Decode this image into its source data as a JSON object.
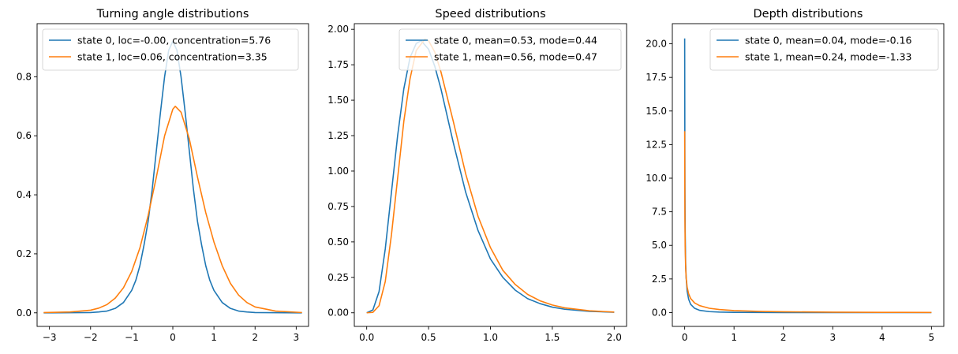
{
  "colors": {
    "series0": "#1f77b4",
    "series1": "#ff7f0e"
  },
  "chart_data": [
    {
      "type": "line",
      "title": "Turning angle distributions",
      "xlabel": "",
      "ylabel": "",
      "xlim": [
        -3.3,
        3.3
      ],
      "ylim": [
        -0.046,
        0.98
      ],
      "xticks": [
        -3,
        -2,
        -1,
        0,
        1,
        2,
        3
      ],
      "xticklabels": [
        "−3",
        "−2",
        "−1",
        "0",
        "1",
        "2",
        "3"
      ],
      "yticks": [
        0.0,
        0.2,
        0.4,
        0.6,
        0.8
      ],
      "yticklabels": [
        "0.0",
        "0.2",
        "0.4",
        "0.6",
        "0.8"
      ],
      "grid": false,
      "legend": "upper-left",
      "series": [
        {
          "name": "state 0, loc=-0.00, concentration=5.76",
          "x": [
            -3.14,
            -2.0,
            -1.8,
            -1.6,
            -1.4,
            -1.2,
            -1.0,
            -0.9,
            -0.8,
            -0.7,
            -0.6,
            -0.5,
            -0.4,
            -0.3,
            -0.2,
            -0.1,
            0.0,
            0.1,
            0.2,
            0.3,
            0.4,
            0.5,
            0.6,
            0.7,
            0.8,
            0.9,
            1.0,
            1.2,
            1.4,
            1.6,
            1.8,
            2.0,
            3.14
          ],
          "y": [
            0.0,
            0.001,
            0.003,
            0.006,
            0.015,
            0.035,
            0.076,
            0.11,
            0.16,
            0.23,
            0.31,
            0.42,
            0.55,
            0.68,
            0.8,
            0.89,
            0.92,
            0.89,
            0.8,
            0.68,
            0.55,
            0.42,
            0.31,
            0.23,
            0.16,
            0.11,
            0.076,
            0.035,
            0.015,
            0.006,
            0.003,
            0.001,
            0.0
          ]
        },
        {
          "name": "state 1, loc=0.06, concentration=3.35",
          "x": [
            -3.14,
            -2.5,
            -2.0,
            -1.8,
            -1.6,
            -1.4,
            -1.2,
            -1.0,
            -0.8,
            -0.6,
            -0.4,
            -0.2,
            0.0,
            0.06,
            0.2,
            0.4,
            0.6,
            0.8,
            1.0,
            1.2,
            1.4,
            1.6,
            1.8,
            2.0,
            2.5,
            3.14
          ],
          "y": [
            0.001,
            0.003,
            0.009,
            0.016,
            0.028,
            0.05,
            0.085,
            0.14,
            0.22,
            0.33,
            0.46,
            0.6,
            0.69,
            0.7,
            0.68,
            0.59,
            0.46,
            0.34,
            0.24,
            0.16,
            0.1,
            0.06,
            0.035,
            0.02,
            0.006,
            0.001
          ]
        }
      ]
    },
    {
      "type": "line",
      "title": "Speed distributions",
      "xlabel": "",
      "ylabel": "",
      "xlim": [
        -0.1,
        2.1
      ],
      "ylim": [
        -0.096,
        2.04
      ],
      "xticks": [
        0.0,
        0.5,
        1.0,
        1.5,
        2.0
      ],
      "xticklabels": [
        "0.0",
        "0.5",
        "1.0",
        "1.5",
        "2.0"
      ],
      "yticks": [
        0.0,
        0.25,
        0.5,
        0.75,
        1.0,
        1.25,
        1.5,
        1.75,
        2.0
      ],
      "yticklabels": [
        "0.00",
        "0.25",
        "0.50",
        "0.75",
        "1.00",
        "1.25",
        "1.50",
        "1.75",
        "2.00"
      ],
      "grid": false,
      "legend": "upper-right",
      "series": [
        {
          "name": "state 0, mean=0.53, mode=0.44",
          "x": [
            0.0,
            0.05,
            0.1,
            0.15,
            0.2,
            0.25,
            0.3,
            0.35,
            0.4,
            0.44,
            0.5,
            0.55,
            0.6,
            0.7,
            0.8,
            0.9,
            1.0,
            1.1,
            1.2,
            1.3,
            1.4,
            1.5,
            1.6,
            1.8,
            2.0
          ],
          "y": [
            0.0,
            0.02,
            0.15,
            0.45,
            0.85,
            1.25,
            1.58,
            1.8,
            1.9,
            1.92,
            1.86,
            1.74,
            1.58,
            1.2,
            0.85,
            0.58,
            0.38,
            0.25,
            0.16,
            0.1,
            0.065,
            0.04,
            0.025,
            0.01,
            0.004
          ]
        },
        {
          "name": "state 1, mean=0.56, mode=0.47",
          "x": [
            0.0,
            0.05,
            0.1,
            0.15,
            0.2,
            0.25,
            0.3,
            0.35,
            0.4,
            0.47,
            0.5,
            0.55,
            0.6,
            0.7,
            0.8,
            0.9,
            1.0,
            1.1,
            1.2,
            1.3,
            1.4,
            1.5,
            1.6,
            1.8,
            2.0
          ],
          "y": [
            0.0,
            0.003,
            0.05,
            0.22,
            0.55,
            0.95,
            1.35,
            1.65,
            1.85,
            1.93,
            1.92,
            1.84,
            1.7,
            1.35,
            0.98,
            0.68,
            0.46,
            0.3,
            0.2,
            0.13,
            0.085,
            0.055,
            0.035,
            0.014,
            0.005
          ]
        }
      ]
    },
    {
      "type": "line",
      "title": "Depth distributions",
      "xlabel": "",
      "ylabel": "",
      "xlim": [
        -0.25,
        5.25
      ],
      "ylim": [
        -1.03,
        21.5
      ],
      "xticks": [
        0,
        1,
        2,
        3,
        4,
        5
      ],
      "xticklabels": [
        "0",
        "1",
        "2",
        "3",
        "4",
        "5"
      ],
      "yticks": [
        0.0,
        2.5,
        5.0,
        7.5,
        10.0,
        12.5,
        15.0,
        17.5,
        20.0
      ],
      "yticklabels": [
        "0.0",
        "2.5",
        "5.0",
        "7.5",
        "10.0",
        "12.5",
        "15.0",
        "17.5",
        "20.0"
      ],
      "grid": false,
      "legend": "upper-right",
      "series": [
        {
          "name": "state 0, mean=0.04, mode=-0.16",
          "x": [
            0.0,
            0.005,
            0.01,
            0.02,
            0.03,
            0.05,
            0.08,
            0.12,
            0.2,
            0.3,
            0.5,
            0.7,
            1.0,
            1.5,
            2.0,
            3.0,
            4.0,
            5.0
          ],
          "y": [
            20.4,
            9.5,
            6.0,
            3.6,
            2.6,
            1.6,
            1.0,
            0.62,
            0.32,
            0.17,
            0.07,
            0.035,
            0.015,
            0.005,
            0.002,
            0.0,
            0.0,
            0.0
          ]
        },
        {
          "name": "state 1, mean=0.24, mode=-1.33",
          "x": [
            0.0,
            0.005,
            0.01,
            0.02,
            0.03,
            0.05,
            0.08,
            0.12,
            0.2,
            0.3,
            0.5,
            0.7,
            1.0,
            1.5,
            2.0,
            3.0,
            4.0,
            5.0
          ],
          "y": [
            13.5,
            7.0,
            4.9,
            3.3,
            2.6,
            1.9,
            1.4,
            1.05,
            0.72,
            0.52,
            0.32,
            0.23,
            0.15,
            0.09,
            0.06,
            0.03,
            0.017,
            0.01
          ]
        }
      ]
    }
  ]
}
